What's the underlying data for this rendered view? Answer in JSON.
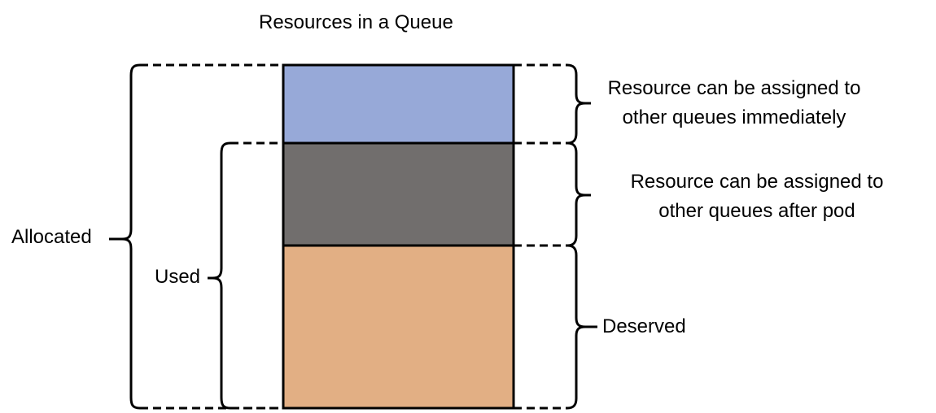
{
  "title": "Resources in a Queue",
  "left_braces": {
    "allocated": "Allocated",
    "used": "Used"
  },
  "segments": [
    {
      "id": "free",
      "color": "#97a9d8"
    },
    {
      "id": "reclaimable",
      "color": "#716e6d"
    },
    {
      "id": "deserved",
      "color": "#e2af84"
    }
  ],
  "right_notes": {
    "immediate": [
      "Resource can be assigned to",
      "other queues immediately"
    ],
    "after_pod": [
      "Resource can be assigned to",
      "other queues after pod"
    ],
    "deserved": "Deserved"
  },
  "line_color": "#000000"
}
